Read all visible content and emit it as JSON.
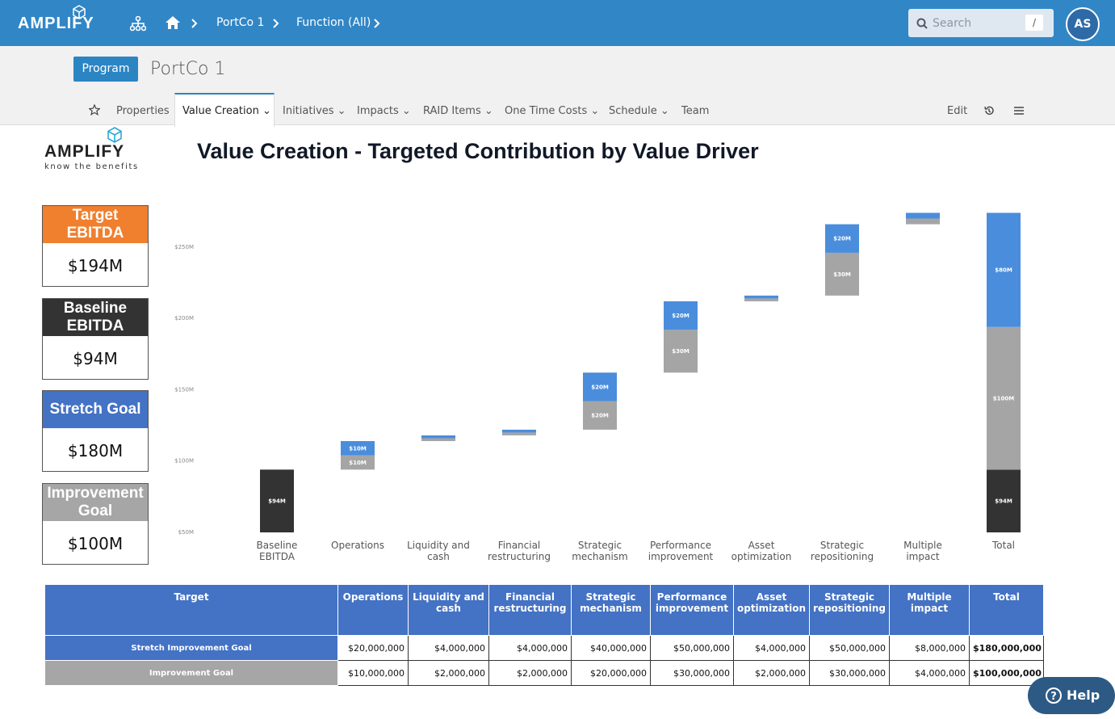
{
  "nav": {
    "logo": "AMPLIFY",
    "breadcrumbs": [
      "PortCo 1",
      "Function (All)"
    ],
    "search_placeholder": "Search",
    "search_shortcut": "/",
    "avatar": "AS"
  },
  "header": {
    "badge": "Program",
    "title": "PortCo 1"
  },
  "tabs": [
    "Properties",
    "Value Creation",
    "Initiatives",
    "Impacts",
    "RAID Items",
    "One Time Costs",
    "Schedule",
    "Team"
  ],
  "tab_actions": {
    "edit": "Edit"
  },
  "logo": {
    "name": "AMPLIFY",
    "tagline": "know the benefits"
  },
  "kpis": [
    {
      "label": "Target EBITDA",
      "value": "$194M",
      "color": "#f07f2e"
    },
    {
      "label": "Baseline EBITDA",
      "value": "$94M",
      "color": "#333333"
    },
    {
      "label": "Stretch Goal",
      "value": "$180M",
      "color": "#4472c4"
    },
    {
      "label": "Improvement Goal",
      "value": "$100M",
      "color": "#a6a6a6"
    }
  ],
  "chart_data": {
    "type": "waterfall",
    "title": "Value Creation - Targeted Contribution by Value Driver",
    "categories": [
      "Baseline EBITDA",
      "Operations",
      "Liquidity and cash",
      "Financial restructuring",
      "Strategic mechanism",
      "Performance improvement",
      "Asset optimization",
      "Strategic repositioning",
      "Multiple impact",
      "Total"
    ],
    "series": [
      {
        "color": "#333333",
        "values": [
          94,
          null,
          null,
          null,
          null,
          null,
          null,
          null,
          null,
          94
        ],
        "value_labels": [
          "$94M",
          null,
          null,
          null,
          null,
          null,
          null,
          null,
          null,
          "$94M"
        ]
      },
      {
        "color": "#a5a5a5",
        "values": [
          null,
          10,
          2,
          2,
          20,
          30,
          2,
          30,
          4,
          100
        ],
        "value_labels": [
          null,
          "$10M",
          null,
          null,
          "$20M",
          "$30M",
          null,
          "$30M",
          null,
          "$100M"
        ]
      },
      {
        "color": "#4a8ddc",
        "values": [
          null,
          10,
          2,
          2,
          20,
          20,
          2,
          20,
          4,
          80
        ],
        "value_labels": [
          null,
          "$10M",
          null,
          null,
          "$20M",
          "$20M",
          null,
          "$20M",
          null,
          "$80M"
        ]
      }
    ],
    "ylim": [
      50,
      275
    ],
    "yticks": [
      {
        "value": 50,
        "label": "$50M"
      },
      {
        "value": 100,
        "label": "$100M"
      },
      {
        "value": 150,
        "label": "$150M"
      },
      {
        "value": 200,
        "label": "$200M"
      },
      {
        "value": 250,
        "label": "$250M"
      }
    ]
  },
  "table": {
    "header": [
      "Target",
      "Operations",
      "Liquidity and cash",
      "Financial restructuring",
      "Strategic mechanism",
      "Performance improvement",
      "Asset optimization",
      "Strategic repositioning",
      "Multiple impact",
      "Total"
    ],
    "rows": [
      [
        "Stretch Improvement Goal",
        "$20,000,000",
        "$4,000,000",
        "$4,000,000",
        "$40,000,000",
        "$50,000,000",
        "$4,000,000",
        "$50,000,000",
        "$8,000,000",
        "$180,000,000"
      ],
      [
        "Improvement Goal",
        "$10,000,000",
        "$2,000,000",
        "$2,000,000",
        "$20,000,000",
        "$30,000,000",
        "$2,000,000",
        "$30,000,000",
        "$4,000,000",
        "$100,000,000"
      ]
    ]
  },
  "help": "Help"
}
